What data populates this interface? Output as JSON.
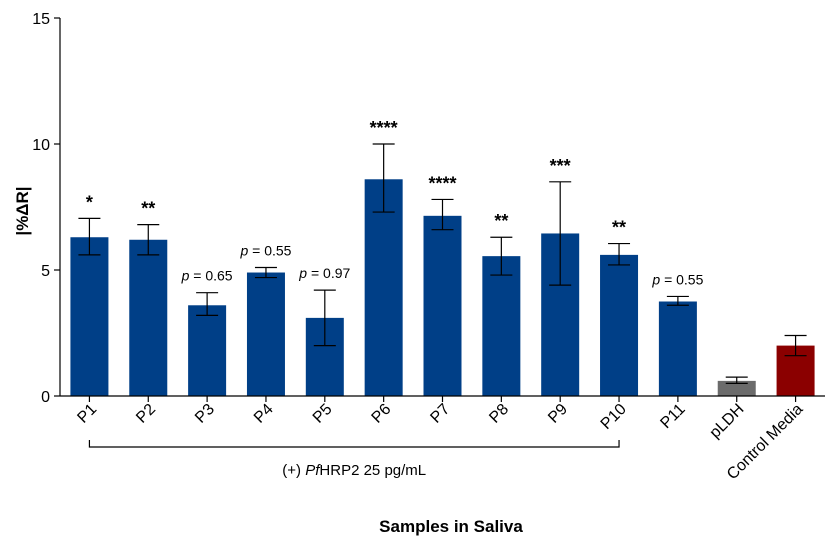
{
  "chart_data": {
    "type": "bar",
    "ylabel": "|%ΔR|",
    "xlabel": "Samples in Saliva",
    "ylim": [
      0,
      15
    ],
    "yticks": [
      "0",
      "5",
      "10",
      "15"
    ],
    "ytick_values": [
      0,
      5,
      10,
      15
    ],
    "categories": [
      "P1",
      "P2",
      "P3",
      "P4",
      "P5",
      "P6",
      "P7",
      "P8",
      "P9",
      "P10",
      "P11",
      "pLDH",
      "Control Media"
    ],
    "values": [
      6.3,
      6.2,
      3.6,
      4.9,
      3.1,
      8.6,
      7.15,
      5.55,
      6.45,
      5.6,
      3.75,
      0.6,
      2.0
    ],
    "error_low": [
      5.6,
      5.6,
      3.2,
      4.7,
      2.0,
      7.3,
      6.6,
      4.8,
      4.4,
      5.2,
      3.6,
      0.5,
      1.6
    ],
    "error_high": [
      7.05,
      6.8,
      4.1,
      5.1,
      4.2,
      10.0,
      7.8,
      6.3,
      8.5,
      6.05,
      3.95,
      0.75,
      2.4
    ],
    "bar_colors": [
      "#003f87",
      "#003f87",
      "#003f87",
      "#003f87",
      "#003f87",
      "#003f87",
      "#003f87",
      "#003f87",
      "#003f87",
      "#003f87",
      "#003f87",
      "#6b6b6b",
      "#8b0000"
    ],
    "annotations": [
      "*",
      "**",
      "= 0.65",
      "= 0.55",
      "= 0.97",
      "****",
      "****",
      "**",
      "***",
      "**",
      "= 0.55",
      "",
      ""
    ],
    "annotation_prefix": [
      "",
      "",
      "p",
      "p",
      "p",
      "",
      "",
      "",
      "",
      "",
      "p",
      "",
      ""
    ],
    "bracket": {
      "from_category": "P1",
      "to_category": "P10",
      "label_prefix": "(+) ",
      "label_italic": "Pf",
      "label_suffix": "HRP2 25 pg/mL"
    }
  }
}
